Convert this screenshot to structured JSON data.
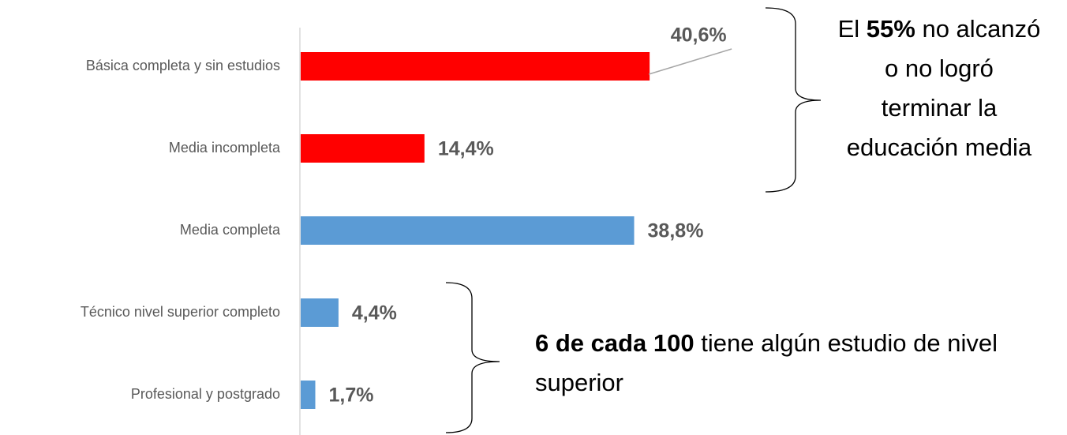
{
  "chart_data": {
    "type": "bar",
    "orientation": "horizontal",
    "categories": [
      "Básica completa y sin estudios",
      "Media incompleta",
      "Media completa",
      "Técnico nivel superior completo",
      "Profesional y postgrado"
    ],
    "values": [
      40.6,
      14.4,
      38.8,
      4.4,
      1.7
    ],
    "value_labels": [
      "40,6%",
      "14,4%",
      "38,8%",
      "4,4%",
      "1,7%"
    ],
    "colors": [
      "#ff0000",
      "#ff0000",
      "#5b9bd5",
      "#5b9bd5",
      "#5b9bd5"
    ],
    "annotations": [
      {
        "parts": [
          "El",
          "55%",
          "no alcanzó o no logró terminar la educación media"
        ]
      },
      {
        "parts": [
          "6 de cada 100",
          "tiene algún estudio de nivel superior"
        ]
      }
    ]
  }
}
